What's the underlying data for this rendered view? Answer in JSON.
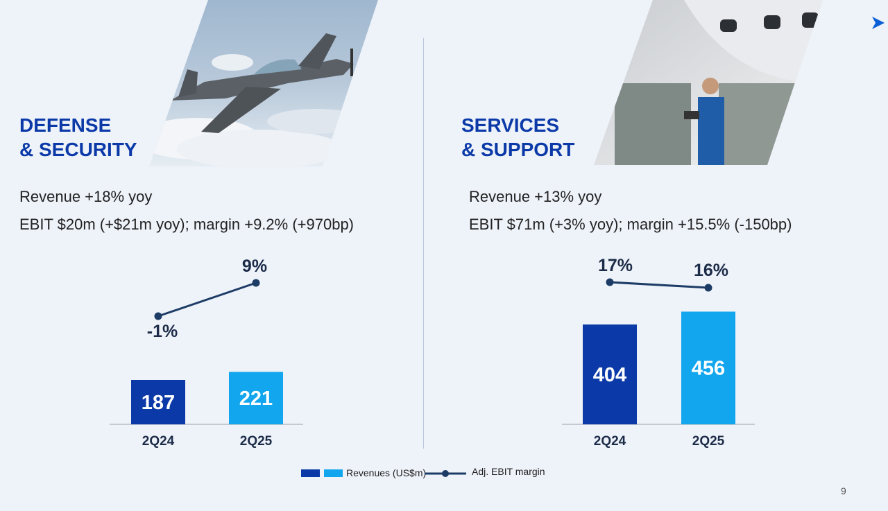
{
  "sections": {
    "defense": {
      "title_line1": "DEFENSE",
      "title_line2": "& SECURITY",
      "kpi_revenue": "Revenue +18% yoy",
      "kpi_ebit": "EBIT $20m (+$21m yoy); margin +9.2% (+970bp)"
    },
    "services": {
      "title_line1": "SERVICES",
      "title_line2": "& SUPPORT",
      "kpi_revenue": "Revenue +13% yoy",
      "kpi_ebit": "EBIT $71m (+3% yoy); margin +15.5% (-150bp)"
    }
  },
  "chart_data": [
    {
      "type": "bar",
      "title": "",
      "categories": [
        "2Q24",
        "2Q25"
      ],
      "series": [
        {
          "name": "Revenues (US$m)",
          "values": [
            187,
            221
          ],
          "colors": [
            "#0b3aa8",
            "#12a6ee"
          ]
        },
        {
          "name": "Adj. EBIT margin",
          "type": "line",
          "values": [
            -1,
            9
          ],
          "labels": [
            "-1%",
            "9%"
          ],
          "color": "#1c3c66"
        }
      ],
      "bar_labels": [
        "187",
        "221"
      ],
      "grid": false
    },
    {
      "type": "bar",
      "title": "",
      "categories": [
        "2Q24",
        "2Q25"
      ],
      "series": [
        {
          "name": "Revenues (US$m)",
          "values": [
            404,
            456
          ],
          "colors": [
            "#0b3aa8",
            "#12a6ee"
          ]
        },
        {
          "name": "Adj. EBIT margin",
          "type": "line",
          "values": [
            17,
            16
          ],
          "labels": [
            "17%",
            "16%"
          ],
          "color": "#1c3c66"
        }
      ],
      "bar_labels": [
        "404",
        "456"
      ],
      "grid": false
    }
  ],
  "legend": {
    "revenues": "Revenues (US$m)",
    "ebit_margin": "Adj. EBIT margin",
    "colors": {
      "dark": "#0b3aa8",
      "light": "#12a6ee",
      "line": "#1c3c66"
    }
  },
  "page_number": "9",
  "icons": {
    "nav": "arrow-right-icon"
  },
  "colors": {
    "accent": "#0b3aa8",
    "background": "#eef2f9"
  }
}
